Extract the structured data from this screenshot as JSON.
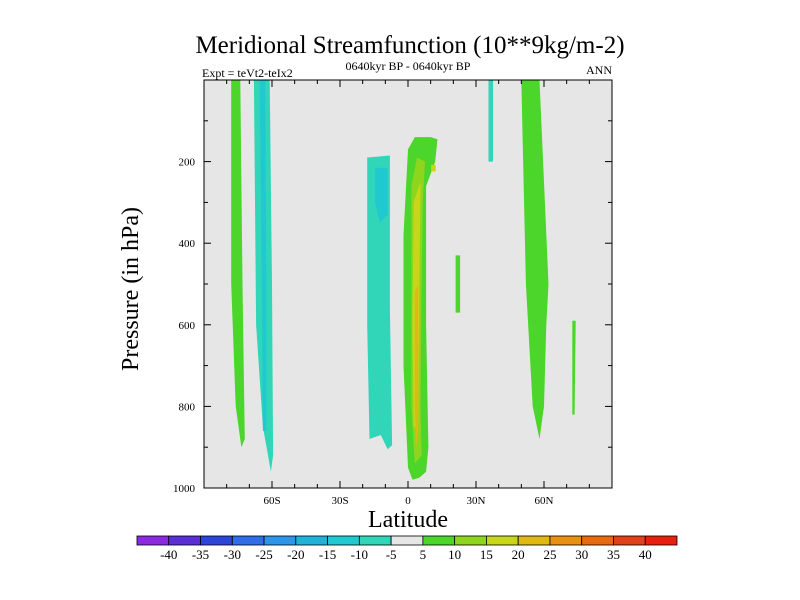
{
  "chart_data": {
    "type": "heatmap",
    "title": "Meridional Streamfunction (10**9kg/m-2)",
    "subtitle_left": "Expt = teVt2-teIx2",
    "subtitle_center": "0640kyr BP - 0640kyr BP",
    "subtitle_right": "ANN",
    "xlabel": "Latitude",
    "ylabel": "Pressure (in hPa)",
    "xlim": [
      -90,
      90
    ],
    "ylim": [
      1000,
      0
    ],
    "x_ticks": [
      {
        "value": -60,
        "label": "60S"
      },
      {
        "value": -30,
        "label": "30S"
      },
      {
        "value": 0,
        "label": "0"
      },
      {
        "value": 30,
        "label": "30N"
      },
      {
        "value": 60,
        "label": "60N"
      }
    ],
    "y_ticks": [
      {
        "value": 200,
        "label": "200"
      },
      {
        "value": 400,
        "label": "400"
      },
      {
        "value": 600,
        "label": "600"
      },
      {
        "value": 800,
        "label": "800"
      },
      {
        "value": 1000,
        "label": "1000"
      }
    ],
    "background_fill_range": "-5 to 5",
    "regions": [
      {
        "level": "5 to 10",
        "points": [
          [
            -78,
            0
          ],
          [
            -74,
            0
          ],
          [
            -73,
            500
          ],
          [
            -72,
            880
          ],
          [
            -73.5,
            900
          ],
          [
            -76,
            800
          ],
          [
            -78,
            500
          ]
        ]
      },
      {
        "level": "-10 to -5",
        "points": [
          [
            -68,
            0
          ],
          [
            -61,
            0
          ],
          [
            -60,
            500
          ],
          [
            -59.5,
            920
          ],
          [
            -60.5,
            960
          ],
          [
            -64,
            850
          ],
          [
            -67,
            600
          ]
        ]
      },
      {
        "level": "-15 to -10",
        "points": [
          [
            -65.5,
            0
          ],
          [
            -63,
            0
          ],
          [
            -62.5,
            500
          ],
          [
            -62.5,
            860
          ],
          [
            -64,
            860
          ],
          [
            -64.5,
            500
          ]
        ]
      },
      {
        "level": "-10 to -5",
        "points": [
          [
            -18,
            190
          ],
          [
            -8,
            185
          ],
          [
            -8,
            560
          ],
          [
            -7,
            895
          ],
          [
            -9,
            905
          ],
          [
            -12,
            870
          ],
          [
            -17,
            880
          ],
          [
            -18,
            600
          ]
        ]
      },
      {
        "level": "-15 to -10",
        "points": [
          [
            -14.5,
            215
          ],
          [
            -9,
            215
          ],
          [
            -9,
            330
          ],
          [
            -12.5,
            350
          ],
          [
            -14.5,
            300
          ]
        ]
      },
      {
        "level": "5 to 10",
        "points": [
          [
            -2,
            380
          ],
          [
            0,
            170
          ],
          [
            3,
            140
          ],
          [
            10,
            140
          ],
          [
            13,
            145
          ],
          [
            12,
            200
          ],
          [
            8,
            260
          ],
          [
            8,
            600
          ],
          [
            9,
            900
          ],
          [
            8,
            960
          ],
          [
            5,
            975
          ],
          [
            2,
            980
          ],
          [
            0,
            950
          ],
          [
            -2,
            700
          ]
        ]
      },
      {
        "level": "10 to 15",
        "points": [
          [
            1.5,
            260
          ],
          [
            4,
            190
          ],
          [
            7.5,
            200
          ],
          [
            6.5,
            300
          ],
          [
            6,
            500
          ],
          [
            5.5,
            800
          ],
          [
            6,
            920
          ],
          [
            3,
            940
          ],
          [
            1.5,
            800
          ]
        ]
      },
      {
        "level": "15 to 20",
        "points": [
          [
            2.5,
            300
          ],
          [
            5.5,
            250
          ],
          [
            5,
            500
          ],
          [
            4.5,
            850
          ],
          [
            2.5,
            850
          ],
          [
            2,
            600
          ]
        ]
      },
      {
        "level": "20 to 25",
        "points": [
          [
            3,
            520
          ],
          [
            4.5,
            500
          ],
          [
            4.5,
            860
          ],
          [
            3.5,
            900
          ],
          [
            3,
            800
          ]
        ]
      },
      {
        "level": "15 to 20",
        "points": [
          [
            10.2,
            208
          ],
          [
            12.2,
            208
          ],
          [
            12.2,
            224
          ],
          [
            10.2,
            224
          ]
        ]
      },
      {
        "level": "5 to 10",
        "points": [
          [
            21,
            430
          ],
          [
            23,
            430
          ],
          [
            23,
            570
          ],
          [
            21,
            570
          ]
        ]
      },
      {
        "level": "-10 to -5",
        "points": [
          [
            35.5,
            0
          ],
          [
            37.5,
            0
          ],
          [
            37.5,
            200
          ],
          [
            35.5,
            200
          ]
        ]
      },
      {
        "level": "5 to 10",
        "points": [
          [
            50,
            0
          ],
          [
            58,
            0
          ],
          [
            60,
            250
          ],
          [
            62,
            500
          ],
          [
            61,
            600
          ],
          [
            60,
            800
          ],
          [
            58,
            880
          ],
          [
            55,
            800
          ],
          [
            52,
            500
          ]
        ]
      },
      {
        "level": "5 to 10",
        "points": [
          [
            72.5,
            590
          ],
          [
            74,
            590
          ],
          [
            73.5,
            820
          ],
          [
            72.5,
            820
          ]
        ]
      }
    ],
    "colorbar": {
      "levels": [
        "-40",
        "-35",
        "-30",
        "-25",
        "-20",
        "-15",
        "-10",
        "-5",
        "5",
        "10",
        "15",
        "20",
        "25",
        "30",
        "35",
        "40"
      ],
      "colors": [
        "#8a2be2",
        "#5a2fd6",
        "#2d46d8",
        "#2f6ee6",
        "#2f95e8",
        "#21b2d8",
        "#20c9cf",
        "#31d6b8",
        "#e6e6e6",
        "#4cd62b",
        "#8ed61d",
        "#c8d61b",
        "#e0b816",
        "#e89012",
        "#e86a10",
        "#e0401a",
        "#e82010"
      ]
    }
  }
}
